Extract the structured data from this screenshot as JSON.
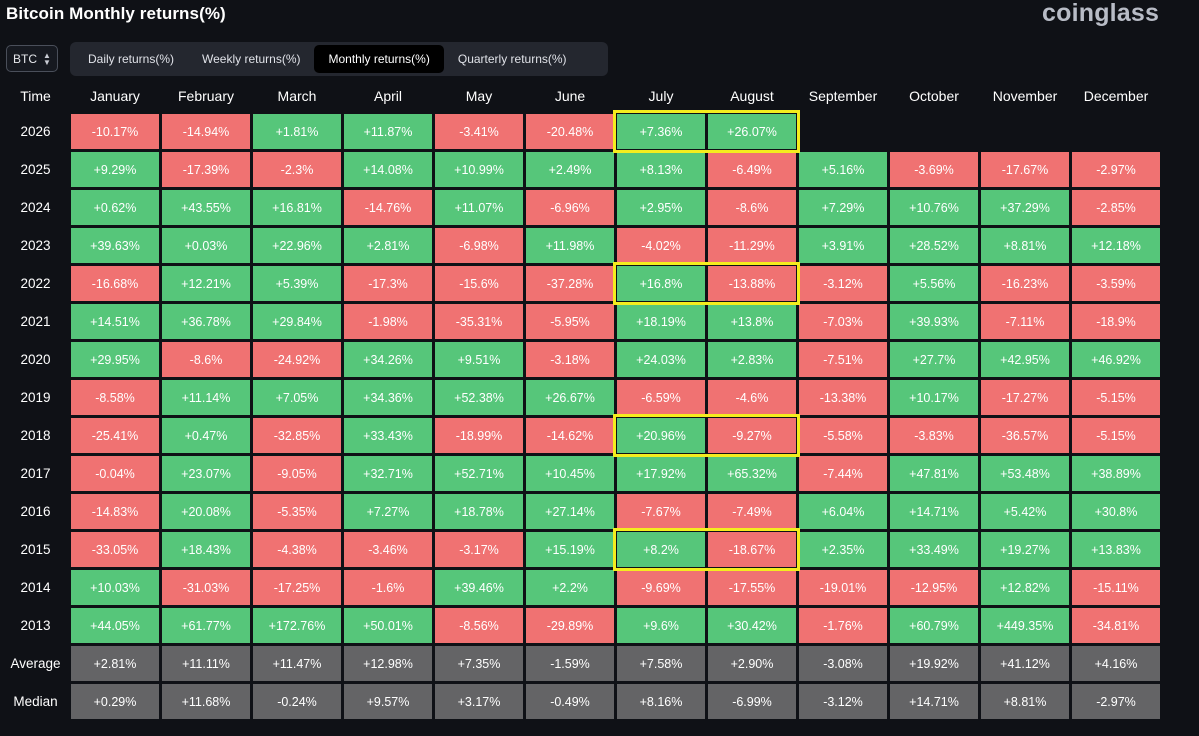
{
  "title": "Bitcoin Monthly returns(%)",
  "brand": "coinglass",
  "coin_selector": {
    "value": "BTC"
  },
  "tabs": [
    {
      "label": "Daily returns(%)",
      "active": false
    },
    {
      "label": "Weekly returns(%)",
      "active": false
    },
    {
      "label": "Monthly returns(%)",
      "active": true
    },
    {
      "label": "Quarterly returns(%)",
      "active": false
    }
  ],
  "colors": {
    "positive": "#56c67a",
    "negative": "#f07272",
    "aggregate": "#646466",
    "highlight": "#f4ed1e",
    "background": "#0f1116"
  },
  "table": {
    "columns": [
      "Time",
      "January",
      "February",
      "March",
      "April",
      "May",
      "June",
      "July",
      "August",
      "September",
      "October",
      "November",
      "December"
    ],
    "rows": [
      {
        "label": "2026",
        "values": [
          "-10.17%",
          "-14.94%",
          "+1.81%",
          "+11.87%",
          "-3.41%",
          "-20.48%",
          "+7.36%",
          "+26.07%",
          "",
          "",
          "",
          ""
        ]
      },
      {
        "label": "2025",
        "values": [
          "+9.29%",
          "-17.39%",
          "-2.3%",
          "+14.08%",
          "+10.99%",
          "+2.49%",
          "+8.13%",
          "-6.49%",
          "+5.16%",
          "-3.69%",
          "-17.67%",
          "-2.97%"
        ]
      },
      {
        "label": "2024",
        "values": [
          "+0.62%",
          "+43.55%",
          "+16.81%",
          "-14.76%",
          "+11.07%",
          "-6.96%",
          "+2.95%",
          "-8.6%",
          "+7.29%",
          "+10.76%",
          "+37.29%",
          "-2.85%"
        ]
      },
      {
        "label": "2023",
        "values": [
          "+39.63%",
          "+0.03%",
          "+22.96%",
          "+2.81%",
          "-6.98%",
          "+11.98%",
          "-4.02%",
          "-11.29%",
          "+3.91%",
          "+28.52%",
          "+8.81%",
          "+12.18%"
        ]
      },
      {
        "label": "2022",
        "values": [
          "-16.68%",
          "+12.21%",
          "+5.39%",
          "-17.3%",
          "-15.6%",
          "-37.28%",
          "+16.8%",
          "-13.88%",
          "-3.12%",
          "+5.56%",
          "-16.23%",
          "-3.59%"
        ]
      },
      {
        "label": "2021",
        "values": [
          "+14.51%",
          "+36.78%",
          "+29.84%",
          "-1.98%",
          "-35.31%",
          "-5.95%",
          "+18.19%",
          "+13.8%",
          "-7.03%",
          "+39.93%",
          "-7.11%",
          "-18.9%"
        ]
      },
      {
        "label": "2020",
        "values": [
          "+29.95%",
          "-8.6%",
          "-24.92%",
          "+34.26%",
          "+9.51%",
          "-3.18%",
          "+24.03%",
          "+2.83%",
          "-7.51%",
          "+27.7%",
          "+42.95%",
          "+46.92%"
        ]
      },
      {
        "label": "2019",
        "values": [
          "-8.58%",
          "+11.14%",
          "+7.05%",
          "+34.36%",
          "+52.38%",
          "+26.67%",
          "-6.59%",
          "-4.6%",
          "-13.38%",
          "+10.17%",
          "-17.27%",
          "-5.15%"
        ]
      },
      {
        "label": "2018",
        "values": [
          "-25.41%",
          "+0.47%",
          "-32.85%",
          "+33.43%",
          "-18.99%",
          "-14.62%",
          "+20.96%",
          "-9.27%",
          "-5.58%",
          "-3.83%",
          "-36.57%",
          "-5.15%"
        ]
      },
      {
        "label": "2017",
        "values": [
          "-0.04%",
          "+23.07%",
          "-9.05%",
          "+32.71%",
          "+52.71%",
          "+10.45%",
          "+17.92%",
          "+65.32%",
          "-7.44%",
          "+47.81%",
          "+53.48%",
          "+38.89%"
        ]
      },
      {
        "label": "2016",
        "values": [
          "-14.83%",
          "+20.08%",
          "-5.35%",
          "+7.27%",
          "+18.78%",
          "+27.14%",
          "-7.67%",
          "-7.49%",
          "+6.04%",
          "+14.71%",
          "+5.42%",
          "+30.8%"
        ]
      },
      {
        "label": "2015",
        "values": [
          "-33.05%",
          "+18.43%",
          "-4.38%",
          "-3.46%",
          "-3.17%",
          "+15.19%",
          "+8.2%",
          "-18.67%",
          "+2.35%",
          "+33.49%",
          "+19.27%",
          "+13.83%"
        ]
      },
      {
        "label": "2014",
        "values": [
          "+10.03%",
          "-31.03%",
          "-17.25%",
          "-1.6%",
          "+39.46%",
          "+2.2%",
          "-9.69%",
          "-17.55%",
          "-19.01%",
          "-12.95%",
          "+12.82%",
          "-15.11%"
        ]
      },
      {
        "label": "2013",
        "values": [
          "+44.05%",
          "+61.77%",
          "+172.76%",
          "+50.01%",
          "-8.56%",
          "-29.89%",
          "+9.6%",
          "+30.42%",
          "-1.76%",
          "+60.79%",
          "+449.35%",
          "-34.81%"
        ]
      },
      {
        "label": "Average",
        "values": [
          "+2.81%",
          "+11.11%",
          "+11.47%",
          "+12.98%",
          "+7.35%",
          "-1.59%",
          "+7.58%",
          "+2.90%",
          "-3.08%",
          "+19.92%",
          "+41.12%",
          "+4.16%"
        ]
      },
      {
        "label": "Median",
        "values": [
          "+0.29%",
          "+11.68%",
          "-0.24%",
          "+9.57%",
          "+3.17%",
          "-0.49%",
          "+8.16%",
          "-6.99%",
          "-3.12%",
          "+14.71%",
          "+8.81%",
          "-2.97%"
        ]
      }
    ],
    "aggregate_rows": [
      "Average",
      "Median"
    ],
    "highlighted_rows": [
      "2026",
      "2022",
      "2018",
      "2015"
    ],
    "highlighted_columns": [
      "July",
      "August"
    ]
  }
}
